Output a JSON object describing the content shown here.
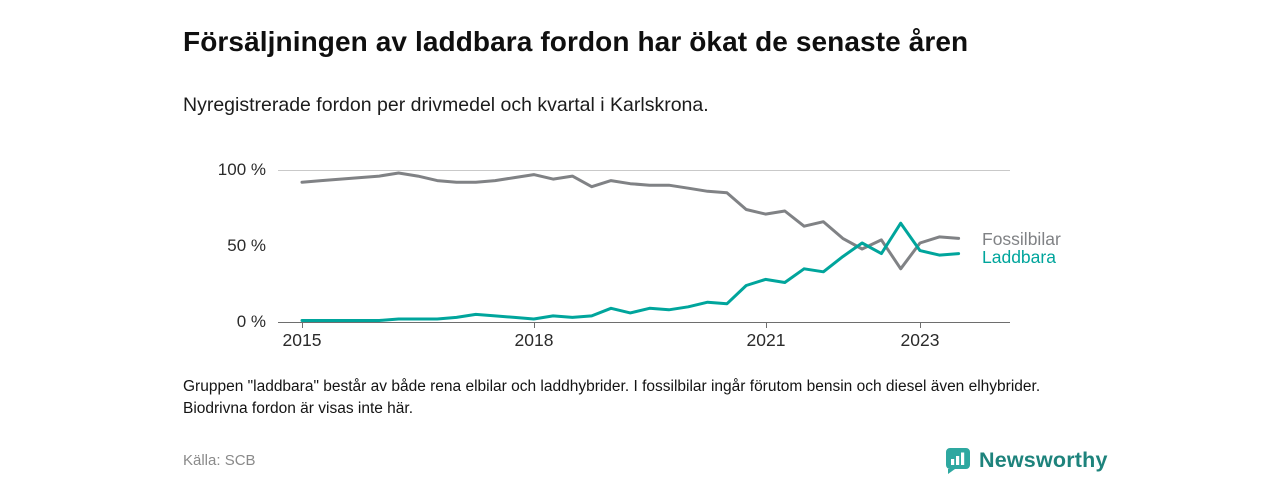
{
  "title": "Försäljningen av laddbara fordon har ökat de senaste åren",
  "subtitle": "Nyregistrerade fordon per drivmedel och kvartal i Karlskrona.",
  "footnote": "Gruppen \"laddbara\" består av både rena elbilar och laddhybrider. I fossilbilar ingår förutom bensin och diesel även elhybrider. Biodrivna fordon är visas inte här.",
  "source": "Källa: SCB",
  "branding": {
    "name": "Newsworthy",
    "logo_icon": "bar-chart-speech-bubble-icon",
    "icon_color": "#2ea8a0",
    "text_color": "#1e837c"
  },
  "chart_data": {
    "type": "line",
    "title": "Försäljningen av laddbara fordon har ökat de senaste åren",
    "subtitle": "Nyregistrerade fordon per drivmedel och kvartal i Karlskrona.",
    "x_unit": "quarter",
    "ylim": [
      0,
      100
    ],
    "y_tick_labels": [
      "100 %",
      "50 %",
      "0 %"
    ],
    "x_tick_labels": [
      "2015",
      "2018",
      "2021",
      "2023"
    ],
    "x_tick_indices": [
      0,
      12,
      24,
      32
    ],
    "grid": "horizontal-top-only",
    "legend_position": "right-of-line-end",
    "categories": [
      "2015-Q1",
      "2015-Q2",
      "2015-Q3",
      "2015-Q4",
      "2016-Q1",
      "2016-Q2",
      "2016-Q3",
      "2016-Q4",
      "2017-Q1",
      "2017-Q2",
      "2017-Q3",
      "2017-Q4",
      "2018-Q1",
      "2018-Q2",
      "2018-Q3",
      "2018-Q4",
      "2019-Q1",
      "2019-Q2",
      "2019-Q3",
      "2019-Q4",
      "2020-Q1",
      "2020-Q2",
      "2020-Q3",
      "2020-Q4",
      "2021-Q1",
      "2021-Q2",
      "2021-Q3",
      "2021-Q4",
      "2022-Q1",
      "2022-Q2",
      "2022-Q3",
      "2022-Q4",
      "2023-Q1",
      "2023-Q2",
      "2023-Q3"
    ],
    "series": [
      {
        "name": "Fossilbilar",
        "color": "#808285",
        "values": [
          92,
          93,
          94,
          95,
          96,
          98,
          96,
          93,
          92,
          92,
          93,
          95,
          97,
          94,
          96,
          89,
          93,
          91,
          90,
          90,
          88,
          86,
          85,
          74,
          71,
          73,
          63,
          66,
          55,
          48,
          54,
          35,
          52,
          56,
          55
        ]
      },
      {
        "name": "Laddbara",
        "color": "#00a59c",
        "values": [
          1,
          1,
          1,
          1,
          1,
          2,
          2,
          2,
          3,
          5,
          4,
          3,
          2,
          4,
          3,
          4,
          9,
          6,
          9,
          8,
          10,
          13,
          12,
          24,
          28,
          26,
          35,
          33,
          43,
          52,
          45,
          65,
          47,
          44,
          45
        ]
      }
    ]
  }
}
